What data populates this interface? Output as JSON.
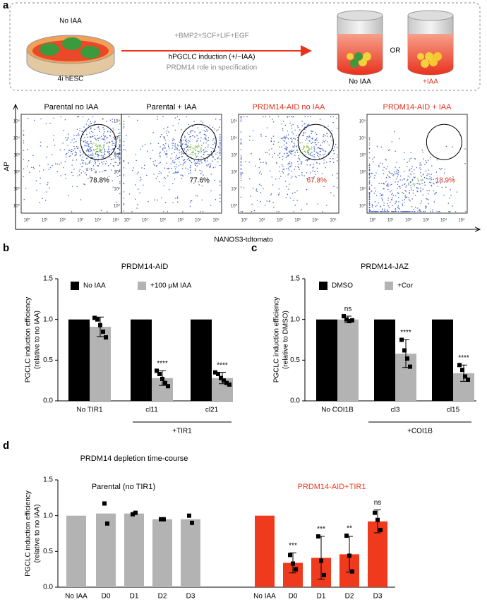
{
  "panel_labels": [
    "a",
    "b",
    "c",
    "d"
  ],
  "schematic": {
    "dish_label": "No IAA",
    "cell_label": "4i hESC",
    "factors": "+BMP2+SCF+LIF+EGF",
    "induction": "hPGCLC induction (+/−IAA)",
    "role": "PRDM14 role in specification",
    "or": "OR",
    "cup_labels": [
      "No IAA",
      "+IAA"
    ]
  },
  "flow": {
    "y_label": "AP",
    "x_label": "NANOS3-tdtomato",
    "ticks": [
      "10⁰",
      "10¹",
      "10²",
      "10³",
      "10⁴",
      "10⁵"
    ],
    "plots": [
      {
        "title": "Parental no IAA",
        "gate": "78.8%",
        "color": "#000000"
      },
      {
        "title": "Parental + IAA",
        "gate": "77.6%",
        "color": "#000000"
      },
      {
        "title": "PRDM14-AID no IAA",
        "gate": "67.8%",
        "color": "#e8321e"
      },
      {
        "title": "PRDM14-AID + IAA",
        "gate": "18.9%",
        "color": "#e8321e"
      }
    ]
  },
  "chart_data": [
    {
      "type": "bar",
      "title": "PRDM14-AID",
      "y_label": "PGCLC induction efficiency",
      "y_label_sub": "(relative to no IAA)",
      "categories": [
        "No TIR1",
        "cl11",
        "cl21"
      ],
      "bracket_label": "+TIR1",
      "series": [
        {
          "name": "No IAA",
          "color": "#000000",
          "values": [
            1,
            1,
            1
          ]
        },
        {
          "name": "+100 µM IAA",
          "color": "#b3b3b3",
          "values": [
            0.91,
            0.28,
            0.28
          ],
          "errors": [
            0.12,
            0.09,
            0.07
          ],
          "points": [
            [
              1.02,
              1.0,
              0.93,
              0.85,
              0.78
            ],
            [
              0.37,
              0.33,
              0.27,
              0.22,
              0.18
            ],
            [
              0.35,
              0.33,
              0.28,
              0.25,
              0.22,
              0.2
            ]
          ],
          "significance": [
            null,
            "****",
            "****"
          ]
        }
      ],
      "ylim": [
        0,
        1.5
      ],
      "yticks": [
        {
          "value": 0,
          "label": "0.0"
        },
        {
          "value": 0.5,
          "label": "0.5"
        },
        {
          "value": 1,
          "label": "1.0"
        },
        {
          "value": 1.5,
          "label": "1.5"
        }
      ]
    },
    {
      "type": "bar",
      "title": "PRDM14-JAZ",
      "y_label": "PGCLC induction efficiency",
      "y_label_sub": "(relative to DMSO)",
      "categories": [
        "No COI1B",
        "cl3",
        "cl15"
      ],
      "bracket_label": "+COI1B",
      "series": [
        {
          "name": "DMSO",
          "color": "#000000",
          "values": [
            1,
            1,
            1
          ]
        },
        {
          "name": "+Cor",
          "color": "#b3b3b3",
          "values": [
            1.0,
            0.58,
            0.34
          ],
          "errors": [
            0.04,
            0.17,
            0.1
          ],
          "points": [
            [
              1.04,
              1.0,
              0.98,
              0.99
            ],
            [
              0.75,
              0.62,
              0.52,
              0.42
            ],
            [
              0.44,
              0.38,
              0.3,
              0.26
            ]
          ],
          "significance": [
            "ns",
            "****",
            "****"
          ]
        }
      ],
      "ylim": [
        0,
        1.5
      ],
      "yticks": [
        {
          "value": 0,
          "label": "0.0"
        },
        {
          "value": 0.5,
          "label": "0.5"
        },
        {
          "value": 1,
          "label": "1.0"
        },
        {
          "value": 1.5,
          "label": "1.5"
        }
      ]
    },
    {
      "type": "bar",
      "title": "PRDM14 depletion time-course",
      "y_label": "PGCLC induction efficiency",
      "y_label_sub": "(relative to no IAA)",
      "categories": [
        "No IAA",
        "D0",
        "D1",
        "D2",
        "D3",
        "No IAA",
        "D0",
        "D1",
        "D2",
        "D3"
      ],
      "series": [
        {
          "name": "Parental (no TIR1)",
          "color": "#b3b3b3",
          "values": [
            1,
            1.03,
            1.03,
            0.95,
            0.95,
            null,
            null,
            null,
            null,
            null
          ],
          "points": [
            null,
            [
              1.17,
              0.89
            ],
            [
              1.02,
              1.04
            ],
            [
              0.95,
              0.95
            ],
            [
              1.0,
              0.9
            ],
            null,
            null,
            null,
            null,
            null
          ]
        },
        {
          "name": "PRDM14-AID+TIR1",
          "color": "#f03a1e",
          "values": [
            null,
            null,
            null,
            null,
            null,
            1,
            0.34,
            0.41,
            0.46,
            0.92
          ],
          "errors": [
            null,
            null,
            null,
            null,
            null,
            null,
            0.14,
            0.3,
            0.25,
            0.16
          ],
          "points": [
            null,
            null,
            null,
            null,
            null,
            null,
            [
              0.45,
              0.33,
              0.25
            ],
            [
              0.71,
              0.37,
              0.17
            ],
            [
              0.72,
              0.44,
              0.22
            ],
            [
              1.04,
              0.94,
              0.8
            ]
          ],
          "significance": [
            null,
            null,
            null,
            null,
            null,
            null,
            "***",
            "***",
            "**",
            "ns"
          ]
        }
      ],
      "ylim": [
        0,
        1.5
      ],
      "yticks": [
        {
          "value": 0,
          "label": "0.0"
        },
        {
          "value": 0.5,
          "label": "0.5"
        },
        {
          "value": 1,
          "label": "1.0"
        },
        {
          "value": 1.5,
          "label": "1.5"
        }
      ]
    }
  ]
}
